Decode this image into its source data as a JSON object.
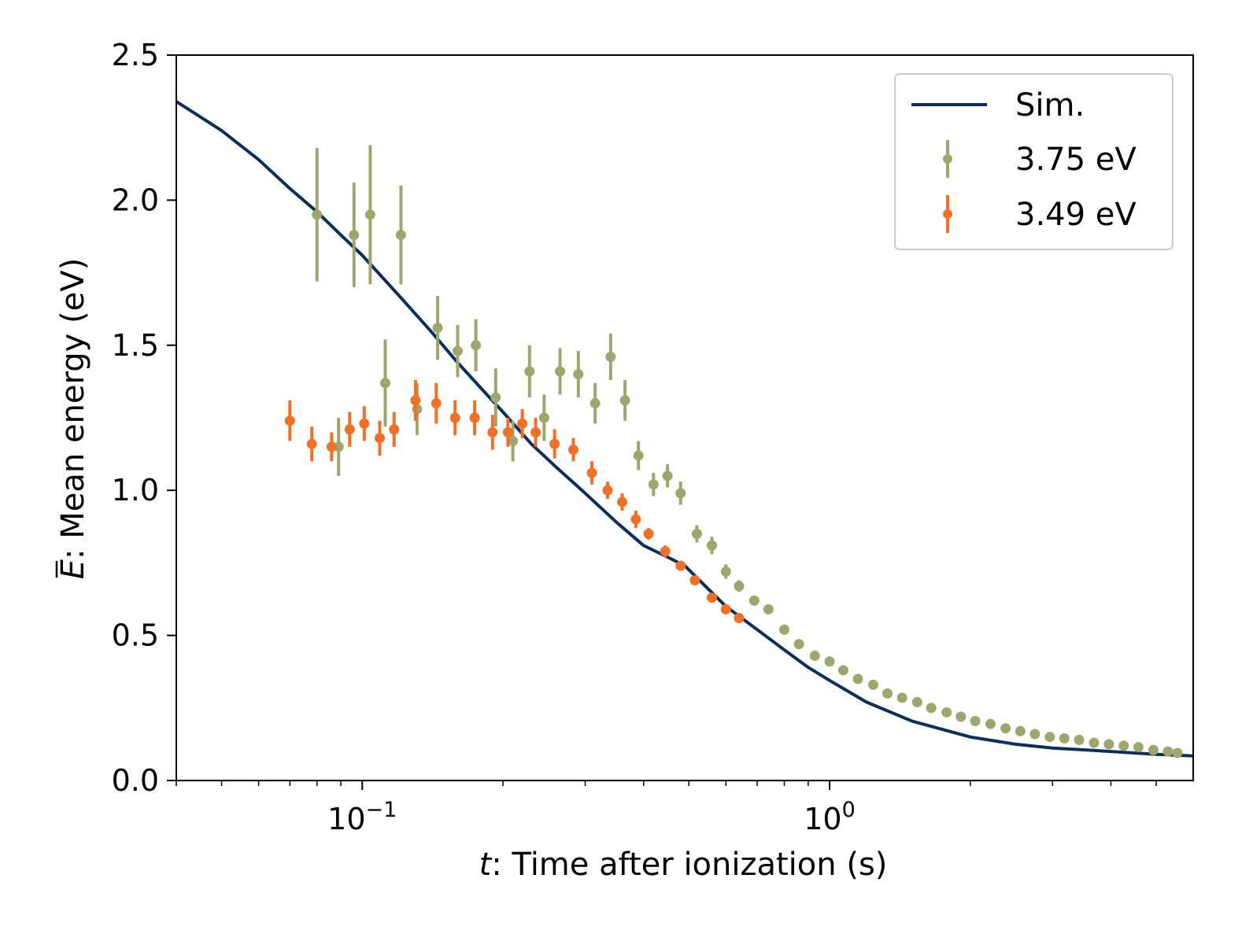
{
  "chart_data": {
    "type": "scatter",
    "title": "",
    "xlabel_var": "t",
    "xlabel_text": ": Time after ionization (s)",
    "ylabel_var": "E",
    "ylabel_text": ": Mean energy (eV)",
    "xscale": "log",
    "xlim": [
      0.04,
      6.0
    ],
    "ylim": [
      0.0,
      2.5
    ],
    "grid": false,
    "legend_position": "top-right",
    "y_ticks": [
      {
        "value": 0.0,
        "label": "0.0"
      },
      {
        "value": 0.5,
        "label": "0.5"
      },
      {
        "value": 1.0,
        "label": "1.0"
      },
      {
        "value": 1.5,
        "label": "1.5"
      },
      {
        "value": 2.0,
        "label": "2.0"
      },
      {
        "value": 2.5,
        "label": "2.5"
      }
    ],
    "x_major_ticks": [
      {
        "value": 0.1,
        "base": "10",
        "exp": "−1"
      },
      {
        "value": 1.0,
        "base": "10",
        "exp": "0"
      }
    ],
    "x_minor_ticks": [
      0.04,
      0.05,
      0.06,
      0.07,
      0.08,
      0.09,
      0.2,
      0.3,
      0.4,
      0.5,
      0.6,
      0.7,
      0.8,
      0.9,
      2,
      3,
      4,
      5
    ],
    "series": [
      {
        "name": "Sim.",
        "kind": "line",
        "color": "#0d2d5c",
        "x": [
          0.04,
          0.05,
          0.06,
          0.07,
          0.08,
          0.09,
          0.1,
          0.12,
          0.14,
          0.16,
          0.18,
          0.2,
          0.23,
          0.26,
          0.3,
          0.35,
          0.4,
          0.45,
          0.49,
          0.55,
          0.6,
          0.7,
          0.8,
          0.9,
          1.0,
          1.2,
          1.5,
          2.0,
          2.5,
          3.0,
          4.0,
          5.0,
          6.0
        ],
        "y": [
          2.34,
          2.24,
          2.14,
          2.04,
          1.96,
          1.88,
          1.81,
          1.67,
          1.55,
          1.44,
          1.35,
          1.27,
          1.16,
          1.08,
          0.99,
          0.89,
          0.81,
          0.77,
          0.74,
          0.66,
          0.6,
          0.52,
          0.45,
          0.39,
          0.345,
          0.27,
          0.205,
          0.15,
          0.125,
          0.112,
          0.1,
          0.09,
          0.085
        ]
      },
      {
        "name": "3.75 eV",
        "kind": "errorbar",
        "color": "#9da66d",
        "x": [
          0.08,
          0.089,
          0.096,
          0.104,
          0.112,
          0.121,
          0.131,
          0.145,
          0.16,
          0.175,
          0.193,
          0.21,
          0.228,
          0.245,
          0.265,
          0.29,
          0.315,
          0.34,
          0.365,
          0.39,
          0.42,
          0.45,
          0.48,
          0.52,
          0.56,
          0.6,
          0.64,
          0.69,
          0.74,
          0.8,
          0.86,
          0.93,
          1.0,
          1.07,
          1.15,
          1.24,
          1.33,
          1.43,
          1.54,
          1.65,
          1.78,
          1.91,
          2.05,
          2.21,
          2.38,
          2.56,
          2.75,
          2.96,
          3.18,
          3.42,
          3.68,
          3.96,
          4.26,
          4.58,
          4.93,
          5.3,
          5.55
        ],
        "y": [
          1.95,
          1.15,
          1.88,
          1.95,
          1.37,
          1.88,
          1.28,
          1.56,
          1.48,
          1.5,
          1.32,
          1.17,
          1.41,
          1.25,
          1.41,
          1.4,
          1.3,
          1.46,
          1.31,
          1.12,
          1.02,
          1.05,
          0.99,
          0.85,
          0.81,
          0.72,
          0.67,
          0.62,
          0.59,
          0.52,
          0.47,
          0.43,
          0.41,
          0.38,
          0.35,
          0.33,
          0.3,
          0.285,
          0.27,
          0.25,
          0.235,
          0.22,
          0.205,
          0.195,
          0.18,
          0.17,
          0.16,
          0.15,
          0.145,
          0.14,
          0.13,
          0.125,
          0.12,
          0.115,
          0.105,
          0.1,
          0.095
        ],
        "yerr": [
          0.23,
          0.1,
          0.18,
          0.24,
          0.15,
          0.17,
          0.09,
          0.11,
          0.09,
          0.09,
          0.1,
          0.07,
          0.09,
          0.08,
          0.08,
          0.08,
          0.07,
          0.08,
          0.07,
          0.05,
          0.04,
          0.04,
          0.04,
          0.03,
          0.03,
          0.025,
          0.02,
          0,
          0,
          0,
          0,
          0,
          0,
          0,
          0,
          0,
          0,
          0,
          0,
          0,
          0,
          0,
          0,
          0,
          0,
          0,
          0,
          0,
          0,
          0,
          0,
          0,
          0,
          0,
          0,
          0,
          0
        ]
      },
      {
        "name": "3.49 eV",
        "kind": "errorbar",
        "color": "#f07027",
        "x": [
          0.07,
          0.078,
          0.086,
          0.094,
          0.101,
          0.109,
          0.117,
          0.13,
          0.144,
          0.158,
          0.174,
          0.19,
          0.205,
          0.22,
          0.235,
          0.258,
          0.283,
          0.31,
          0.335,
          0.36,
          0.385,
          0.41,
          0.445,
          0.48,
          0.515,
          0.56,
          0.6,
          0.64
        ],
        "y": [
          1.24,
          1.16,
          1.15,
          1.21,
          1.23,
          1.18,
          1.21,
          1.31,
          1.3,
          1.25,
          1.25,
          1.2,
          1.2,
          1.23,
          1.2,
          1.16,
          1.14,
          1.06,
          1.0,
          0.96,
          0.9,
          0.85,
          0.79,
          0.74,
          0.69,
          0.63,
          0.59,
          0.56
        ],
        "yerr": [
          0.07,
          0.06,
          0.05,
          0.06,
          0.06,
          0.06,
          0.06,
          0.07,
          0.07,
          0.06,
          0.06,
          0.06,
          0.05,
          0.05,
          0.05,
          0.05,
          0.04,
          0.04,
          0.03,
          0.03,
          0.03,
          0.02,
          0.02,
          0,
          0,
          0,
          0,
          0
        ]
      }
    ]
  }
}
